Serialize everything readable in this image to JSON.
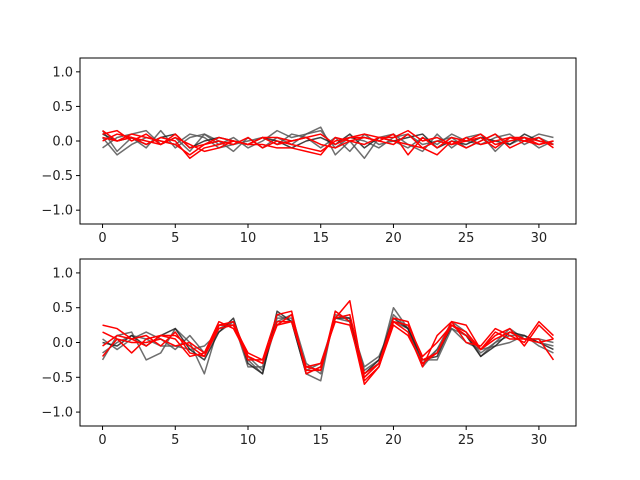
{
  "chart_data": [
    {
      "type": "line",
      "title": "",
      "xlabel": "",
      "ylabel": "",
      "xlim": [
        -1.55,
        32.55
      ],
      "ylim": [
        -1.2,
        1.2
      ],
      "xticks": [
        0,
        5,
        10,
        15,
        20,
        25,
        30
      ],
      "yticks": [
        -1.0,
        -0.5,
        0.0,
        0.5,
        1.0
      ],
      "xtick_labels": [
        "0",
        "5",
        "10",
        "15",
        "20",
        "25",
        "30"
      ],
      "ytick_labels": [
        "−1.0",
        "−0.5",
        "0.0",
        "0.5",
        "1.0"
      ],
      "grid": false,
      "legend": "none",
      "x": [
        0,
        1,
        2,
        3,
        4,
        5,
        6,
        7,
        8,
        9,
        10,
        11,
        12,
        13,
        14,
        15,
        16,
        17,
        18,
        19,
        20,
        21,
        22,
        23,
        24,
        25,
        26,
        27,
        28,
        29,
        30,
        31
      ],
      "series": [
        {
          "color": "#555555",
          "values": [
            0.15,
            -0.15,
            0.05,
            -0.1,
            0.15,
            -0.1,
            0.05,
            0.1,
            -0.05,
            0.05,
            -0.1,
            0.0,
            0.15,
            0.05,
            0.1,
            0.2,
            -0.2,
            0.0,
            -0.25,
            0.05,
            0.1,
            -0.05,
            -0.15,
            0.1,
            -0.1,
            0.05,
            0.1,
            -0.15,
            0.05,
            0.0,
            0.1,
            0.05
          ]
        },
        {
          "color": "#555555",
          "values": [
            -0.1,
            0.05,
            0.1,
            0.15,
            -0.05,
            0.05,
            -0.15,
            0.1,
            0.0,
            -0.15,
            0.05,
            -0.1,
            0.05,
            -0.05,
            0.1,
            0.15,
            -0.1,
            0.05,
            0.0,
            -0.1,
            0.05,
            0.1,
            -0.05,
            0.0,
            0.05,
            -0.1,
            0.0,
            0.1,
            -0.05,
            0.05,
            -0.1,
            0.0
          ]
        },
        {
          "color": "#555555",
          "values": [
            0.05,
            -0.2,
            -0.05,
            0.05,
            0.0,
            -0.05,
            0.1,
            0.05,
            -0.1,
            -0.05,
            0.0,
            0.05,
            -0.05,
            0.1,
            0.05,
            -0.1,
            0.05,
            -0.15,
            0.1,
            -0.05,
            0.0,
            -0.1,
            0.05,
            -0.05,
            0.1,
            0.0,
            -0.05,
            0.05,
            0.1,
            -0.05,
            0.05,
            -0.05
          ]
        },
        {
          "color": "#222222",
          "values": [
            0.1,
            0.0,
            0.05,
            -0.05,
            0.05,
            0.1,
            -0.1,
            0.0,
            0.05,
            0.0,
            -0.05,
            0.05,
            0.0,
            -0.1,
            0.0,
            0.05,
            -0.05,
            0.1,
            -0.1,
            0.05,
            0.0,
            0.05,
            0.1,
            -0.1,
            0.0,
            -0.05,
            0.05,
            0.0,
            -0.05,
            0.1,
            0.0,
            -0.05
          ]
        },
        {
          "color": "#ff0000",
          "values": [
            0.15,
            0.0,
            0.1,
            0.05,
            0.0,
            -0.05,
            -0.2,
            -0.05,
            0.0,
            -0.05,
            0.05,
            -0.1,
            0.0,
            -0.05,
            -0.1,
            -0.15,
            0.0,
            0.05,
            0.1,
            0.05,
            0.05,
            0.15,
            0.0,
            0.05,
            -0.05,
            0.0,
            0.1,
            -0.05,
            0.0,
            0.05,
            0.0,
            -0.05
          ]
        },
        {
          "color": "#ff0000",
          "values": [
            0.0,
            0.1,
            0.05,
            0.0,
            -0.05,
            0.1,
            -0.1,
            -0.05,
            0.05,
            0.0,
            -0.05,
            0.05,
            0.05,
            0.0,
            0.05,
            0.1,
            -0.05,
            0.05,
            0.05,
            0.0,
            0.1,
            -0.2,
            0.05,
            -0.1,
            0.05,
            0.0,
            0.05,
            -0.1,
            0.05,
            0.0,
            -0.05,
            0.0
          ]
        },
        {
          "color": "#ff0000",
          "values": [
            0.1,
            0.15,
            0.0,
            0.1,
            -0.05,
            0.05,
            -0.05,
            -0.15,
            -0.1,
            0.0,
            -0.05,
            0.05,
            -0.05,
            0.0,
            0.05,
            -0.05,
            -0.1,
            0.0,
            0.05,
            0.0,
            -0.05,
            0.1,
            -0.1,
            0.0,
            -0.05,
            0.05,
            -0.05,
            0.0,
            0.05,
            0.05,
            -0.05,
            0.0
          ]
        },
        {
          "color": "#ff0000",
          "values": [
            0.05,
            0.0,
            0.05,
            -0.05,
            0.05,
            0.0,
            -0.25,
            -0.1,
            -0.05,
            0.0,
            -0.05,
            -0.05,
            -0.1,
            -0.1,
            -0.15,
            -0.2,
            0.05,
            0.0,
            -0.05,
            0.05,
            0.0,
            -0.05,
            -0.1,
            -0.2,
            0.0,
            -0.1,
            0.0,
            0.1,
            -0.1,
            0.0,
            0.05,
            -0.1
          ]
        }
      ]
    },
    {
      "type": "line",
      "title": "",
      "xlabel": "",
      "ylabel": "",
      "xlim": [
        -1.55,
        32.55
      ],
      "ylim": [
        -1.2,
        1.2
      ],
      "xticks": [
        0,
        5,
        10,
        15,
        20,
        25,
        30
      ],
      "yticks": [
        -1.0,
        -0.5,
        0.0,
        0.5,
        1.0
      ],
      "xtick_labels": [
        "0",
        "5",
        "10",
        "15",
        "20",
        "25",
        "30"
      ],
      "ytick_labels": [
        "−1.0",
        "−0.5",
        "0.0",
        "0.5",
        "1.0"
      ],
      "grid": false,
      "legend": "none",
      "x": [
        0,
        1,
        2,
        3,
        4,
        5,
        6,
        7,
        8,
        9,
        10,
        11,
        12,
        13,
        14,
        15,
        16,
        17,
        18,
        19,
        20,
        21,
        22,
        23,
        24,
        25,
        26,
        27,
        28,
        29,
        30,
        31
      ],
      "series": [
        {
          "color": "#555555",
          "values": [
            -0.25,
            0.1,
            0.15,
            -0.25,
            -0.15,
            0.2,
            0.0,
            -0.45,
            0.25,
            0.25,
            -0.25,
            -0.45,
            0.4,
            0.3,
            -0.45,
            -0.55,
            0.45,
            0.3,
            -0.5,
            -0.3,
            0.5,
            0.2,
            -0.35,
            -0.1,
            0.3,
            0.15,
            -0.2,
            0.0,
            0.2,
            0.05,
            0.05,
            0.0
          ]
        },
        {
          "color": "#555555",
          "values": [
            0.05,
            -0.1,
            0.05,
            0.15,
            0.05,
            -0.1,
            0.1,
            -0.15,
            0.2,
            0.3,
            -0.35,
            -0.35,
            0.35,
            0.35,
            -0.4,
            -0.3,
            0.35,
            0.3,
            -0.35,
            -0.2,
            0.3,
            0.2,
            -0.25,
            -0.25,
            0.2,
            0.0,
            -0.1,
            -0.05,
            0.0,
            0.1,
            -0.05,
            -0.15
          ]
        },
        {
          "color": "#555555",
          "values": [
            -0.15,
            0.0,
            0.1,
            0.05,
            -0.05,
            -0.05,
            -0.1,
            -0.05,
            0.15,
            0.3,
            -0.2,
            -0.4,
            0.3,
            0.4,
            -0.3,
            -0.45,
            0.4,
            0.35,
            -0.4,
            -0.25,
            0.4,
            0.2,
            -0.3,
            -0.1,
            0.2,
            0.1,
            -0.15,
            0.0,
            0.1,
            0.1,
            0.0,
            -0.05
          ]
        },
        {
          "color": "#222222",
          "values": [
            0.0,
            -0.05,
            0.1,
            -0.05,
            0.1,
            0.2,
            -0.1,
            -0.25,
            0.15,
            0.35,
            -0.3,
            -0.45,
            0.45,
            0.3,
            -0.45,
            -0.35,
            0.35,
            0.35,
            -0.45,
            -0.25,
            0.35,
            0.2,
            -0.25,
            -0.2,
            0.25,
            0.1,
            -0.2,
            -0.05,
            0.15,
            0.1,
            0.0,
            -0.1
          ]
        },
        {
          "color": "#ff0000",
          "values": [
            0.25,
            0.2,
            0.05,
            0.1,
            -0.05,
            0.15,
            -0.15,
            -0.2,
            0.25,
            0.25,
            -0.25,
            -0.25,
            0.4,
            0.45,
            -0.45,
            -0.35,
            0.35,
            0.6,
            -0.55,
            -0.35,
            0.3,
            0.15,
            -0.35,
            0.1,
            0.3,
            0.0,
            -0.05,
            0.2,
            0.1,
            0.0,
            0.3,
            0.1
          ]
        },
        {
          "color": "#ff0000",
          "values": [
            0.15,
            0.05,
            -0.15,
            0.05,
            0.1,
            0.05,
            -0.2,
            -0.15,
            0.25,
            0.3,
            -0.2,
            -0.3,
            0.3,
            0.3,
            -0.35,
            -0.4,
            0.45,
            0.3,
            -0.6,
            -0.35,
            0.25,
            0.1,
            -0.3,
            -0.15,
            0.25,
            0.15,
            -0.1,
            0.05,
            0.15,
            0.05,
            0.05,
            -0.25
          ]
        },
        {
          "color": "#ff0000",
          "values": [
            -0.05,
            0.1,
            0.05,
            -0.05,
            0.1,
            0.1,
            -0.05,
            -0.2,
            0.2,
            0.25,
            -0.15,
            -0.25,
            0.25,
            0.4,
            -0.4,
            -0.4,
            0.35,
            0.4,
            -0.45,
            -0.3,
            0.3,
            0.25,
            -0.2,
            0.0,
            0.25,
            0.1,
            -0.1,
            0.1,
            0.2,
            -0.05,
            0.25,
            0.05
          ]
        },
        {
          "color": "#ff0000",
          "values": [
            -0.2,
            0.05,
            0.0,
            0.0,
            0.05,
            -0.05,
            0.0,
            -0.15,
            0.3,
            0.2,
            -0.2,
            -0.3,
            0.25,
            0.3,
            -0.35,
            -0.3,
            0.3,
            0.25,
            -0.5,
            -0.3,
            0.35,
            0.3,
            -0.25,
            -0.15,
            0.3,
            0.25,
            -0.1,
            0.15,
            0.05,
            0.05,
            0.0,
            0.05
          ]
        }
      ]
    }
  ]
}
